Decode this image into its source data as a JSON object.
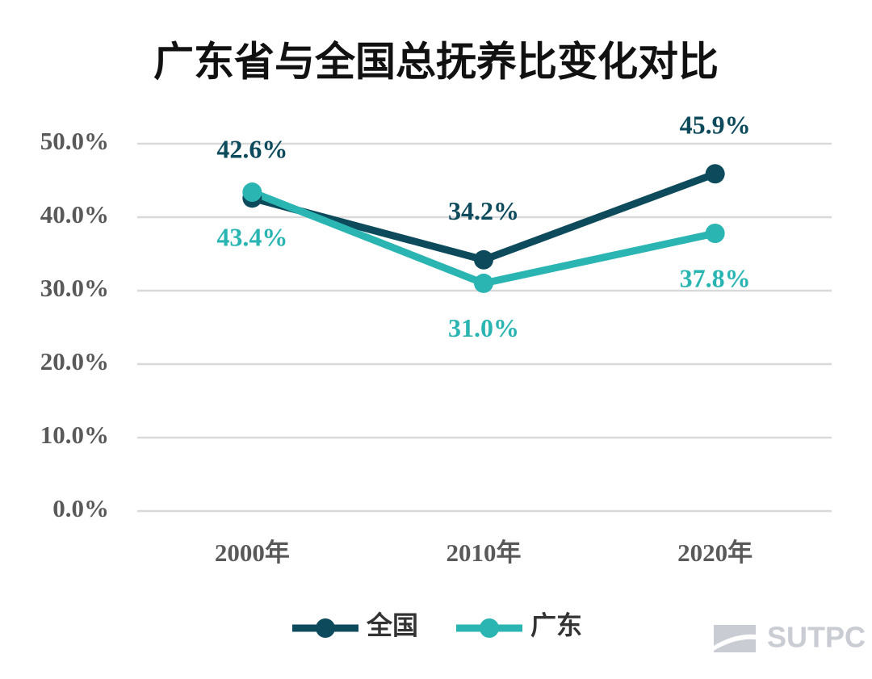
{
  "chart_data": {
    "type": "line",
    "title": "广东省与全国总抚养比变化对比",
    "categories": [
      "2000年",
      "2010年",
      "2020年"
    ],
    "series": [
      {
        "name": "全国",
        "color": "#0d4a5c",
        "values": [
          42.6,
          34.2,
          45.9
        ],
        "value_labels": [
          "42.6%",
          "34.2%",
          "45.9%"
        ]
      },
      {
        "name": "广东",
        "color": "#2ab5b2",
        "values": [
          43.4,
          31.0,
          37.8
        ],
        "value_labels": [
          "43.4%",
          "31.0%",
          "37.8%"
        ]
      }
    ],
    "ylim": [
      0,
      50
    ],
    "yticks": [
      {
        "value": 0,
        "label": "0.0%"
      },
      {
        "value": 10,
        "label": "10.0%"
      },
      {
        "value": 20,
        "label": "20.0%"
      },
      {
        "value": 30,
        "label": "30.0%"
      },
      {
        "value": 40,
        "label": "40.0%"
      },
      {
        "value": 50,
        "label": "50.0%"
      }
    ],
    "grid": true,
    "legend": "bottom",
    "watermark": "SUTPC"
  }
}
